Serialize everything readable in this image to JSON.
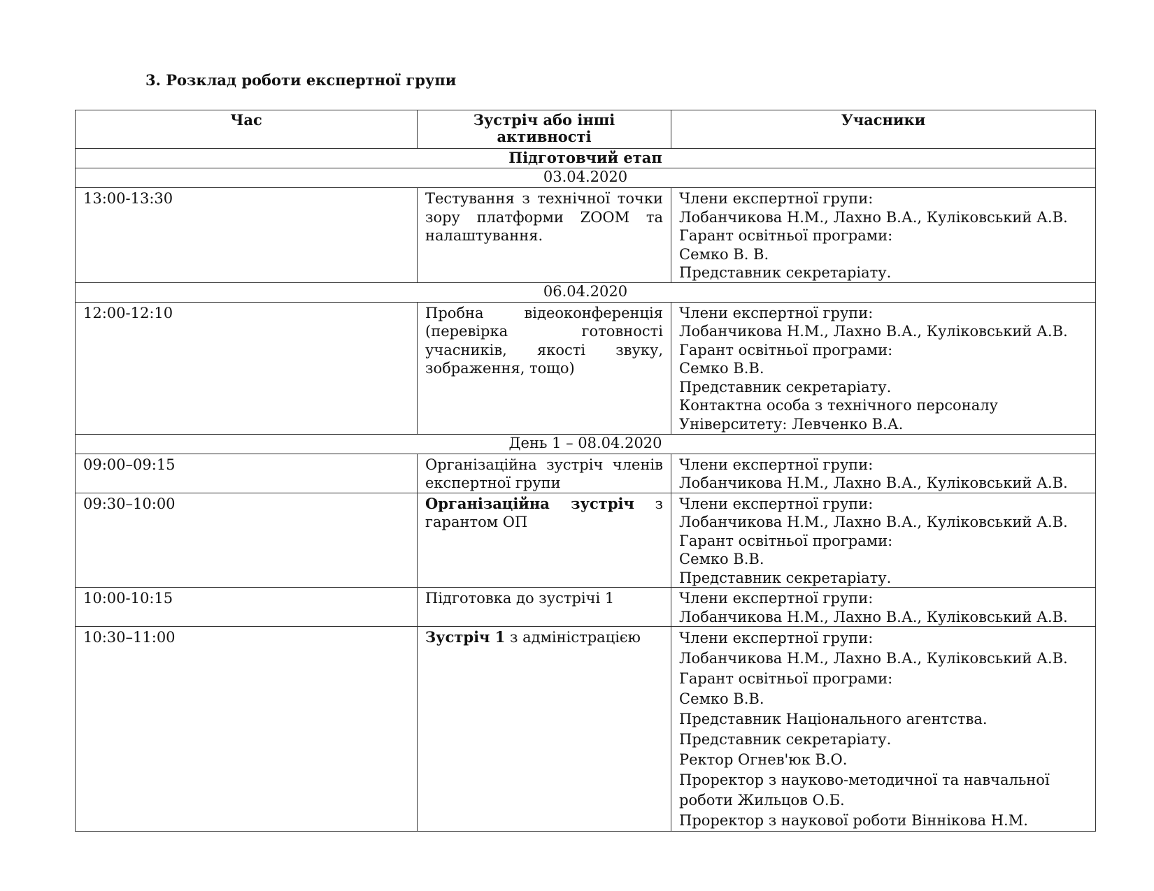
{
  "title": "3. Розклад роботи експертної групи",
  "headers": [
    "Час",
    "Зустріч або інші активності",
    "Учасники"
  ],
  "sections": [
    {
      "label": "Підготовчий етап",
      "bold": true
    },
    {
      "label": "03.04.2020"
    },
    {
      "label": "06.04.2020"
    },
    {
      "label": "День 1 – 08.04.2020"
    }
  ],
  "rows": [
    {
      "time": "13:00-13:30",
      "activity_bold": "",
      "activity": "Тестування з технічної точки зору платформи ZOOM та налаштування.",
      "participants": [
        "Члени експертної групи:",
        "Лобанчикова Н.М., Лахно В.А., Куліковський А.В.",
        "Гарант освітньої програми:",
        "Семко В. В.",
        "Представник секретаріату."
      ]
    },
    {
      "time": "12:00-12:10",
      "activity_bold": "",
      "activity": "Пробна відеоконференція (перевірка готовності учасників, якості звуку, зображення, тощо)",
      "participants": [
        "Члени експертної групи:",
        "Лобанчикова Н.М., Лахно В.А., Куліковський А.В.",
        "Гарант освітньої програми:",
        "Семко В.В.",
        "Представник секретаріату.",
        "Контактна особа з технічного персоналу",
        "Університету: Левченко В.А."
      ]
    },
    {
      "time": "09:00–09:15",
      "activity_bold": "",
      "activity": "Організаційна зустріч членів експертної групи",
      "participants": [
        "Члени експертної групи:",
        "Лобанчикова Н.М., Лахно В.А., Куліковський А.В."
      ]
    },
    {
      "time": "09:30–10:00",
      "activity_bold": "Організаційна зустріч",
      "activity": " з гарантом ОП",
      "participants": [
        "Члени експертної групи:",
        "Лобанчикова Н.М., Лахно В.А., Куліковський А.В.",
        "Гарант освітньої програми:",
        "Семко В.В.",
        "Представник секретаріату."
      ]
    },
    {
      "time": "10:00-10:15",
      "activity_bold": "",
      "activity": "Підготовка до зустрічі 1",
      "participants": [
        "Члени експертної групи:",
        "Лобанчикова Н.М., Лахно В.А., Куліковський А.В."
      ]
    },
    {
      "time": "10:30–11:00",
      "activity_bold": "Зустріч 1",
      "activity": " з адміністрацією",
      "participants": [
        "Члени експертної групи:",
        "Лобанчикова Н.М., Лахно В.А., Куліковський А.В.",
        "Гарант освітньої програми:",
        "Семко В.В.",
        "Представник Національного агентства.",
        "Представник секретаріату.",
        "Ректор Огнев'юк В.О.",
        "Проректор з науково-методичної та навчальної",
        "роботи  Жильцов О.Б.",
        "Проректор з наукової роботи Віннікова Н.М."
      ]
    }
  ]
}
